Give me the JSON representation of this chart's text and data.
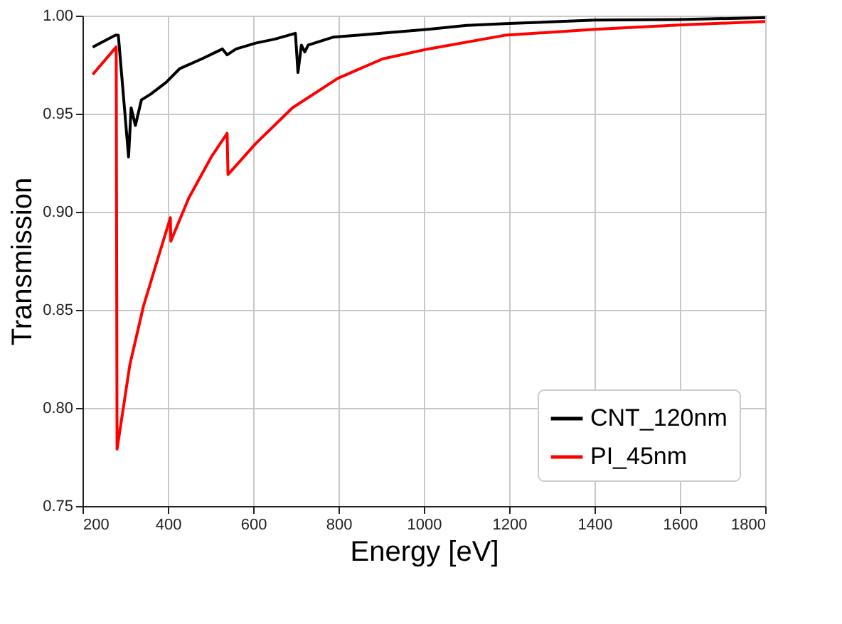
{
  "chart_data": {
    "type": "line",
    "xlabel": "Energy [eV]",
    "ylabel": "Transmission",
    "xlim": [
      200,
      1800
    ],
    "ylim": [
      0.75,
      1.0
    ],
    "xticks": [
      200,
      400,
      600,
      800,
      1000,
      1200,
      1400,
      1600,
      1800
    ],
    "yticks": [
      0.75,
      {
        "value": 0.8,
        "label": "0.80"
      },
      0.85,
      {
        "value": 0.9,
        "label": "0.90"
      },
      0.95,
      {
        "value": 1.0,
        "label": "1.00"
      }
    ],
    "grid": true,
    "legend": "bottom right",
    "line_style": "solid",
    "marker": "none",
    "series": [
      {
        "name": "CNT_120nm",
        "color": "#000000",
        "x": [
          224,
          277,
          284,
          308,
          314,
          324,
          338,
          360,
          396,
          428,
          480,
          528,
          539,
          560,
          606,
          650,
          699,
          705,
          713,
          721,
          729,
          787,
          900,
          1010,
          1100,
          1200,
          1401,
          1600,
          1800
        ],
        "values": [
          0.984,
          0.99,
          0.99,
          0.928,
          0.953,
          0.944,
          0.957,
          0.96,
          0.966,
          0.973,
          0.978,
          0.983,
          0.98,
          0.983,
          0.986,
          0.988,
          0.991,
          0.971,
          0.985,
          0.9815,
          0.985,
          0.989,
          0.991,
          0.993,
          0.995,
          0.996,
          0.9977,
          0.998,
          0.999
        ]
      },
      {
        "name": "PI_45nm",
        "color": "#ff0000",
        "x": [
          224,
          279,
          281,
          311,
          343,
          375,
          406,
          407,
          449,
          502,
          539,
          541,
          607,
          692,
          798,
          904,
          1010,
          1190,
          1401,
          1613,
          1800
        ],
        "values": [
          0.97,
          0.984,
          0.779,
          0.822,
          0.852,
          0.875,
          0.897,
          0.885,
          0.907,
          0.928,
          0.94,
          0.919,
          0.935,
          0.953,
          0.968,
          0.978,
          0.983,
          0.99,
          0.993,
          0.9954,
          0.997
        ]
      }
    ]
  }
}
